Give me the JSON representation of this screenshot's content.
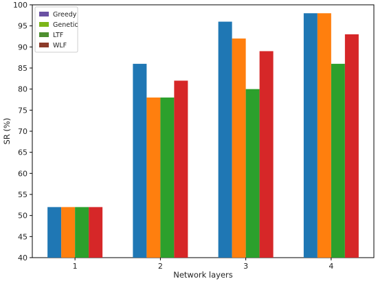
{
  "chart_data": {
    "type": "bar",
    "xlabel": "Network layers",
    "ylabel": "SR (%)",
    "ylim": [
      40,
      100
    ],
    "yticks": [
      40,
      45,
      50,
      55,
      60,
      65,
      70,
      75,
      80,
      85,
      90,
      95,
      100
    ],
    "categories": [
      "1",
      "2",
      "3",
      "4"
    ],
    "grid": false,
    "legend_position": "top-left",
    "legend": [
      {
        "name": "Greedy",
        "color": "#6a51a3"
      },
      {
        "name": "Genetic",
        "color": "#7cb518"
      },
      {
        "name": "LTF",
        "color": "#4e8f2f"
      },
      {
        "name": "WLF",
        "color": "#8c3b2a"
      }
    ],
    "series": [
      {
        "color": "#1f77b4",
        "values": [
          52,
          86,
          96,
          98
        ]
      },
      {
        "color": "#ff7f0e",
        "values": [
          52,
          78,
          92,
          98
        ]
      },
      {
        "color": "#2ca02c",
        "values": [
          52,
          78,
          80,
          86
        ]
      },
      {
        "color": "#d62728",
        "values": [
          52,
          82,
          89,
          93
        ]
      }
    ]
  }
}
